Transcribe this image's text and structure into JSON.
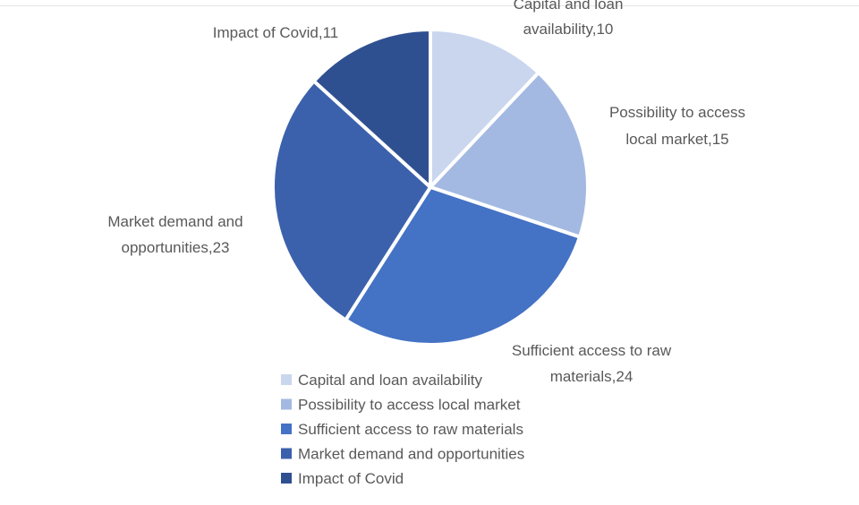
{
  "chart_data": {
    "type": "pie",
    "categories": [
      "Capital and loan availability",
      "Possibility to access local market",
      "Sufficient access to raw materials",
      "Market demand and opportunities",
      "Impact of Covid"
    ],
    "values": [
      10,
      15,
      24,
      23,
      11
    ],
    "data_labels": [
      [
        "Capital and loan",
        "availability,10"
      ],
      [
        "Possibility to access",
        "local market,15"
      ],
      [
        "Sufficient access to raw",
        "materials,24"
      ],
      [
        "Market demand and",
        "opportunities,23"
      ],
      [
        "Impact of Covid,11"
      ]
    ],
    "colors": [
      "#c9d6ee",
      "#a3b9e2",
      "#4472c4",
      "#3c61ac",
      "#2f5090"
    ],
    "legend_position": "bottom",
    "start_angle_deg": 0,
    "direction": "clockwise"
  }
}
